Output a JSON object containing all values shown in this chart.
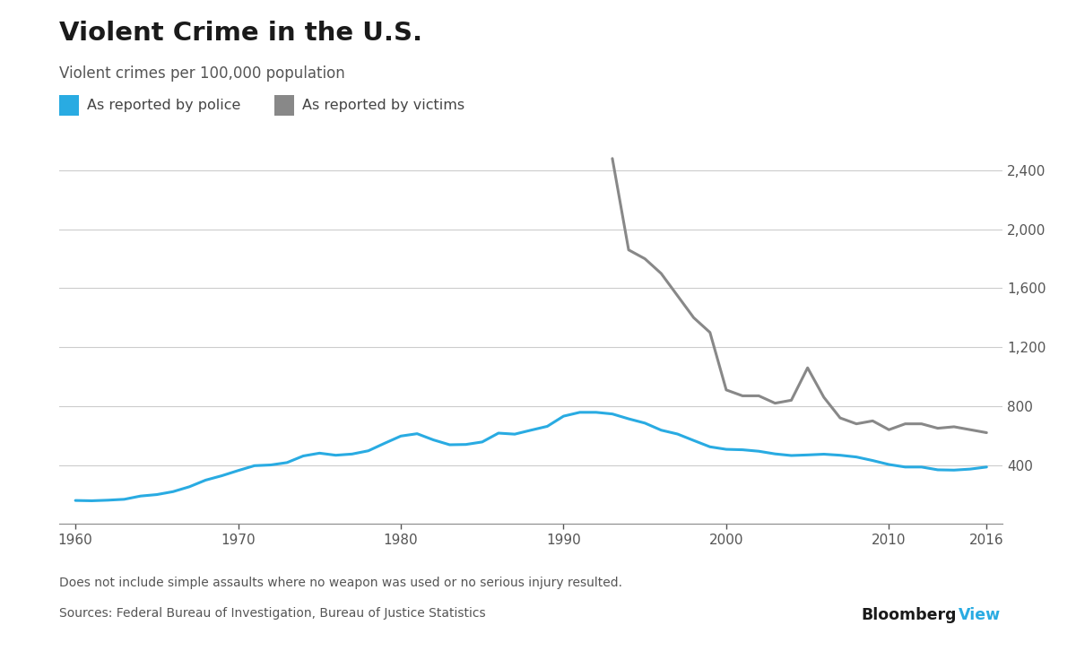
{
  "title": "Violent Crime in the U.S.",
  "subtitle": "Violent crimes per 100,000 population",
  "legend_police": "As reported by police",
  "legend_victims": "As reported by victims",
  "footnote1": "Does not include simple assaults where no weapon was used or no serious injury resulted.",
  "footnote2": "Sources: Federal Bureau of Investigation, Bureau of Justice Statistics",
  "bloomberg_black": "Bloomberg",
  "bloomberg_blue": "View",
  "police_color": "#29ABE2",
  "victims_color": "#888888",
  "background_color": "#FFFFFF",
  "grid_color": "#CCCCCC",
  "text_color": "#555555",
  "title_color": "#1A1A1A",
  "ylim": [
    0,
    2650
  ],
  "yticks": [
    400,
    800,
    1200,
    1600,
    2000,
    2400
  ],
  "xticks": [
    1960,
    1970,
    1980,
    1990,
    2000,
    2010,
    2016
  ],
  "xlim": [
    1959,
    2017
  ],
  "police_data": {
    "years": [
      1960,
      1961,
      1962,
      1963,
      1964,
      1965,
      1966,
      1967,
      1968,
      1969,
      1970,
      1971,
      1972,
      1973,
      1974,
      1975,
      1976,
      1977,
      1978,
      1979,
      1980,
      1981,
      1982,
      1983,
      1984,
      1985,
      1986,
      1987,
      1988,
      1989,
      1990,
      1991,
      1992,
      1993,
      1994,
      1995,
      1996,
      1997,
      1998,
      1999,
      2000,
      2001,
      2002,
      2003,
      2004,
      2005,
      2006,
      2007,
      2008,
      2009,
      2010,
      2011,
      2012,
      2013,
      2014,
      2015,
      2016
    ],
    "values": [
      160,
      158,
      162,
      168,
      190,
      200,
      220,
      253,
      298,
      328,
      363,
      396,
      401,
      417,
      462,
      481,
      467,
      475,
      497,
      548,
      597,
      613,
      571,
      538,
      540,
      557,
      617,
      610,
      637,
      663,
      732,
      758,
      758,
      747,
      714,
      685,
      637,
      611,
      567,
      524,
      507,
      504,
      494,
      476,
      465,
      469,
      474,
      467,
      455,
      431,
      404,
      387,
      387,
      368,
      366,
      373,
      387
    ]
  },
  "victims_data": {
    "years": [
      1993,
      1994,
      1995,
      1996,
      1997,
      1998,
      1999,
      2000,
      2001,
      2002,
      2003,
      2004,
      2005,
      2006,
      2007,
      2008,
      2009,
      2010,
      2011,
      2012,
      2013,
      2014,
      2015,
      2016
    ],
    "values": [
      2480,
      1860,
      1800,
      1700,
      1550,
      1400,
      1300,
      910,
      870,
      870,
      820,
      840,
      1060,
      860,
      720,
      680,
      700,
      640,
      680,
      680,
      650,
      660,
      640,
      620
    ]
  }
}
